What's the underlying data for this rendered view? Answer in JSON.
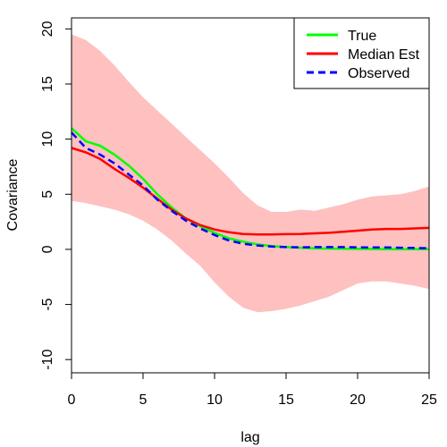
{
  "chart_data": {
    "type": "line",
    "xlabel": "lag",
    "ylabel": "Covariance",
    "xlim": [
      0,
      25
    ],
    "ylim": [
      -11.2,
      21
    ],
    "x_ticks": [
      0,
      5,
      10,
      15,
      20,
      25
    ],
    "y_ticks": [
      -10,
      -5,
      0,
      5,
      10,
      15,
      20
    ],
    "grid": false,
    "legend_position": "top-right",
    "band": {
      "color": "#ffc0c0",
      "x": [
        0,
        1,
        2,
        3,
        4,
        5,
        6,
        7,
        8,
        9,
        10,
        11,
        12,
        13,
        14,
        15,
        16,
        17,
        18,
        19,
        20,
        21,
        22,
        23,
        24,
        25
      ],
      "upper": [
        19.5,
        19.0,
        18.0,
        16.7,
        15.2,
        13.8,
        12.6,
        11.4,
        10.2,
        9.0,
        7.8,
        6.5,
        5.1,
        4.0,
        3.4,
        3.4,
        3.6,
        3.5,
        3.8,
        4.1,
        4.5,
        4.8,
        4.9,
        5.0,
        5.3,
        5.7
      ],
      "lower": [
        4.4,
        4.2,
        3.9,
        3.6,
        3.2,
        2.6,
        1.8,
        0.8,
        -0.4,
        -1.5,
        -3.0,
        -4.3,
        -5.3,
        -5.7,
        -5.6,
        -5.4,
        -5.1,
        -4.7,
        -4.3,
        -3.7,
        -3.1,
        -2.9,
        -2.9,
        -3.1,
        -3.3,
        -3.6
      ]
    },
    "series": [
      {
        "name": "True",
        "color": "#00ff00",
        "style": "solid",
        "x": [
          0,
          1,
          2,
          3,
          4,
          5,
          6,
          7,
          8,
          9,
          10,
          11,
          12,
          13,
          14,
          15,
          16,
          17,
          18,
          19,
          20,
          21,
          22,
          23,
          24,
          25
        ],
        "y": [
          11.0,
          9.8,
          9.4,
          8.6,
          7.6,
          6.4,
          5.0,
          3.8,
          2.8,
          2.1,
          1.5,
          1.0,
          0.7,
          0.45,
          0.3,
          0.2,
          0.15,
          0.1,
          0.07,
          0.05,
          0.04,
          0.03,
          0.02,
          0.02,
          0.01,
          0.01
        ]
      },
      {
        "name": "Median Est",
        "color": "#ff0000",
        "style": "solid",
        "x": [
          0,
          1,
          2,
          3,
          4,
          5,
          6,
          7,
          8,
          9,
          10,
          11,
          12,
          13,
          14,
          15,
          16,
          17,
          18,
          19,
          20,
          21,
          22,
          23,
          24,
          25
        ],
        "y": [
          9.2,
          8.8,
          8.2,
          7.3,
          6.5,
          5.6,
          4.6,
          3.6,
          2.8,
          2.2,
          1.8,
          1.55,
          1.4,
          1.35,
          1.35,
          1.38,
          1.4,
          1.45,
          1.5,
          1.6,
          1.7,
          1.8,
          1.85,
          1.85,
          1.9,
          1.95
        ]
      },
      {
        "name": "Observed",
        "color": "#0000ff",
        "style": "dashed",
        "x": [
          0,
          1,
          2,
          3,
          4,
          5,
          6,
          7,
          8,
          9,
          10,
          11,
          12,
          13,
          14,
          15,
          16,
          17,
          18,
          19,
          20,
          21,
          22,
          23,
          24,
          25
        ],
        "y": [
          10.6,
          9.2,
          8.6,
          7.8,
          6.8,
          5.8,
          4.5,
          3.5,
          2.6,
          1.9,
          1.3,
          0.8,
          0.5,
          0.35,
          0.25,
          0.2,
          0.18,
          0.2,
          0.2,
          0.2,
          0.18,
          0.18,
          0.18,
          0.15,
          0.12,
          0.1
        ]
      }
    ]
  }
}
